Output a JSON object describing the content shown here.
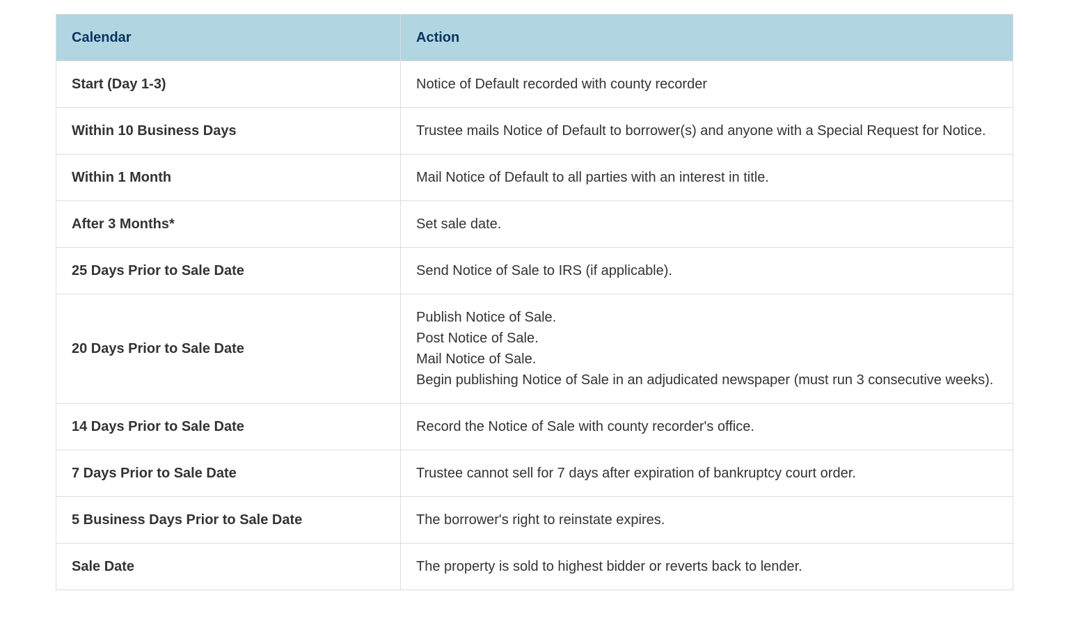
{
  "table": {
    "header_bg": "#b2d5e2",
    "header_color": "#0a3560",
    "border_color": "#d9dde0",
    "text_color": "#333333",
    "font_size": 20,
    "calendar_col_width_pct": 36,
    "action_col_width_pct": 64,
    "columns": [
      "Calendar",
      "Action"
    ],
    "rows": [
      {
        "calendar": "Start (Day 1-3)",
        "action": [
          "Notice of Default recorded with county recorder"
        ]
      },
      {
        "calendar": "Within 10 Business Days",
        "action": [
          "Trustee mails Notice of Default to borrower(s) and anyone with a Special Request for Notice."
        ]
      },
      {
        "calendar": "Within 1 Month",
        "action": [
          "Mail Notice of Default to all parties with an interest in title."
        ]
      },
      {
        "calendar": "After 3 Months*",
        "action": [
          "Set sale date."
        ]
      },
      {
        "calendar": "25 Days Prior to Sale Date",
        "action": [
          "Send Notice of Sale to IRS (if applicable)."
        ]
      },
      {
        "calendar": "20 Days Prior to Sale Date",
        "action": [
          "Publish Notice of Sale.",
          "Post Notice of Sale.",
          "Mail Notice of Sale.",
          "Begin publishing Notice of Sale in an adjudicated newspaper (must run 3 consecutive weeks)."
        ]
      },
      {
        "calendar": "14 Days Prior to Sale Date",
        "action": [
          "Record the Notice of Sale with county recorder's office."
        ]
      },
      {
        "calendar": "7 Days Prior to Sale Date",
        "action": [
          "Trustee cannot sell for 7 days after expiration of bankruptcy court order."
        ]
      },
      {
        "calendar": "5 Business Days Prior to Sale Date",
        "action": [
          "The borrower's right to reinstate expires."
        ]
      },
      {
        "calendar": "Sale Date",
        "action": [
          "The property is sold to highest bidder or reverts back to lender."
        ]
      }
    ]
  }
}
